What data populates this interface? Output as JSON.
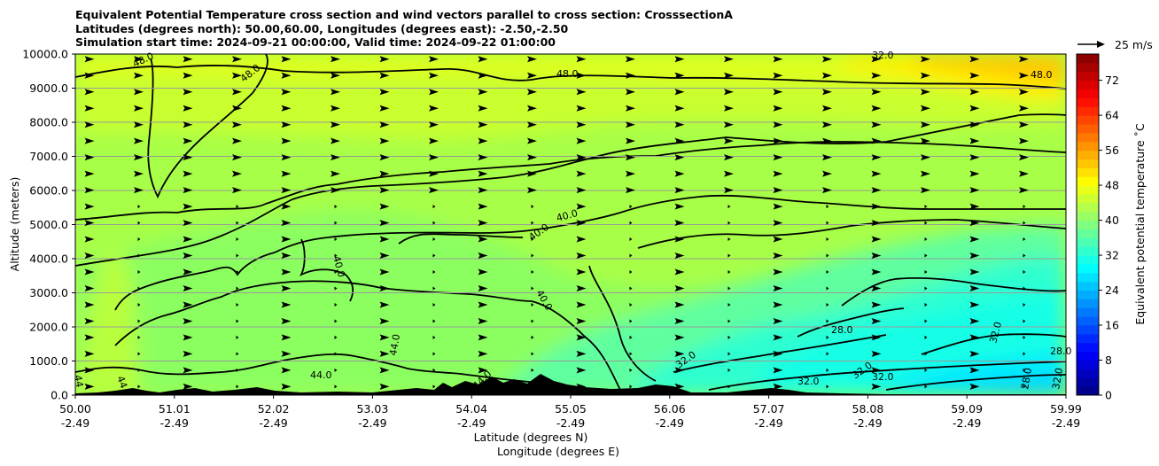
{
  "chart_data": {
    "type": "heatmap",
    "title_lines": [
      "Equivalent Potential Temperature cross section and wind vectors parallel to cross section: CrosssectionA",
      "Latitudes (degrees north): 50.00,60.00, Longitudes (degrees east): -2.50,-2.50",
      "Simulation start time: 2024-09-21 00:00:00, Valid time: 2024-09-22 01:00:00"
    ],
    "xlabel_lines": [
      "Latitude (degrees N)",
      "Longitude (degrees E)"
    ],
    "ylabel": "Altitude (meters)",
    "x_ticks": [
      {
        "lat": "50.00",
        "lon": "-2.49"
      },
      {
        "lat": "51.01",
        "lon": "-2.49"
      },
      {
        "lat": "52.02",
        "lon": "-2.49"
      },
      {
        "lat": "53.03",
        "lon": "-2.49"
      },
      {
        "lat": "54.04",
        "lon": "-2.49"
      },
      {
        "lat": "55.05",
        "lon": "-2.49"
      },
      {
        "lat": "56.06",
        "lon": "-2.49"
      },
      {
        "lat": "57.07",
        "lon": "-2.49"
      },
      {
        "lat": "58.08",
        "lon": "-2.49"
      },
      {
        "lat": "59.09",
        "lon": "-2.49"
      },
      {
        "lat": "59.99",
        "lon": "-2.49"
      }
    ],
    "x_range": [
      50.0,
      59.99
    ],
    "y_range": [
      0,
      10000
    ],
    "y_ticks": [
      "0.0",
      "1000.0",
      "2000.0",
      "3000.0",
      "4000.0",
      "5000.0",
      "6000.0",
      "7000.0",
      "8000.0",
      "9000.0",
      "10000.0"
    ],
    "grid": "horizontal",
    "colorbar": {
      "label": "Equivalent potential temperature $^\\circ$C",
      "label_display": "Equivalent potential temperature ˚C",
      "range": [
        0,
        78
      ],
      "ticks": [
        "0",
        "8",
        "16",
        "24",
        "32",
        "40",
        "48",
        "56",
        "64",
        "72"
      ],
      "colormap": "jet"
    },
    "quiver_key": {
      "label": "25 m/s"
    },
    "contour_levels": [
      28,
      32,
      40,
      44,
      48
    ],
    "contour_labels": [
      "48.0",
      "48.0",
      "48.0",
      "32.0",
      "48.0",
      "40.0",
      "40.0",
      "40.0",
      "40.0",
      "28.0",
      "32.0",
      "32.0",
      "32.0",
      "32.0",
      "44.0",
      "44.0",
      "44",
      "44",
      "44.0",
      "28.0",
      "32.0",
      "32.0",
      "28.0"
    ],
    "description_values": {
      "upper_region": "about 44-50",
      "upper_right_max": "about 54",
      "mid_levels": "about 38-44",
      "lower_right_min": "about 26-30"
    }
  }
}
